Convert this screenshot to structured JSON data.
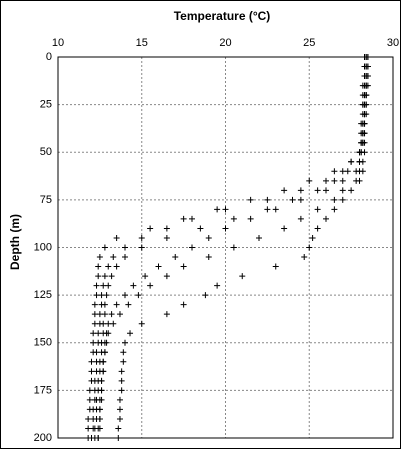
{
  "chart_data": {
    "type": "scatter",
    "x_label": "Temperature (°C)",
    "y_label": "Depth (m)",
    "xlim": [
      10,
      30
    ],
    "xticks": [
      10,
      15,
      20,
      25,
      30
    ],
    "ylim": [
      0,
      200
    ],
    "yticks": [
      0,
      25,
      50,
      75,
      100,
      125,
      150,
      175,
      200
    ],
    "y_inverted": true,
    "x_axis_position": "top",
    "grid": true,
    "marker": "+",
    "y": [
      0,
      5,
      10,
      15,
      20,
      25,
      30,
      35,
      40,
      45,
      50,
      55,
      60,
      65,
      70,
      75,
      80,
      85,
      90,
      95,
      100,
      105,
      110,
      115,
      120,
      125,
      130,
      135,
      140,
      145,
      150,
      155,
      160,
      165,
      170,
      175,
      180,
      185,
      190,
      195,
      200
    ],
    "series": [
      {
        "color": "#000000",
        "x": [
          28.5,
          28.5,
          28.5,
          28.5,
          28.4,
          28.4,
          28.4,
          28.3,
          28.3,
          28.2,
          28.0,
          27.5,
          27.0,
          26.0,
          24.5,
          22.5,
          20.0,
          17.5,
          15.5,
          13.5,
          12.8,
          12.5,
          12.4,
          12.4,
          12.3,
          12.3,
          12.2,
          12.2,
          12.2,
          12.1,
          12.1,
          12.1,
          12.0,
          12.0,
          12.0,
          11.9,
          11.9,
          11.9,
          11.8,
          11.8,
          11.8
        ]
      },
      {
        "color": "#000000",
        "x": [
          28.3,
          28.3,
          28.4,
          28.3,
          28.3,
          28.2,
          28.3,
          28.2,
          28.2,
          28.2,
          28.1,
          28.0,
          27.8,
          27.0,
          26.0,
          24.5,
          22.5,
          20.5,
          18.5,
          16.5,
          15.0,
          14.0,
          13.5,
          13.2,
          13.0,
          12.9,
          12.8,
          12.8,
          12.7,
          12.7,
          12.6,
          12.6,
          12.5,
          12.5,
          12.4,
          12.4,
          12.3,
          12.3,
          12.3,
          12.2,
          12.2
        ]
      },
      {
        "color": "#000000",
        "x": [
          28.4,
          28.4,
          28.5,
          28.4,
          28.4,
          28.4,
          28.3,
          28.3,
          28.3,
          28.3,
          28.3,
          28.2,
          28.2,
          28.0,
          27.5,
          27.0,
          26.5,
          26.0,
          25.5,
          25.2,
          25.0,
          24.7,
          23.0,
          21.0,
          19.5,
          18.8,
          17.5,
          16.5,
          15.0,
          14.3,
          14.0,
          13.9,
          13.9,
          13.8,
          13.8,
          13.8,
          13.7,
          13.7,
          13.7,
          13.6,
          13.6
        ]
      },
      {
        "color": "#000000",
        "x": [
          28.4,
          28.4,
          28.3,
          28.4,
          28.3,
          28.3,
          28.3,
          28.2,
          28.2,
          28.1,
          28.0,
          28.0,
          27.3,
          26.5,
          25.5,
          24.0,
          23.0,
          21.5,
          20.0,
          19.0,
          18.0,
          17.0,
          16.0,
          15.2,
          14.5,
          14.0,
          13.5,
          13.2,
          13.0,
          12.9,
          12.8,
          12.8,
          12.7,
          12.7,
          12.6,
          12.6,
          12.6,
          12.5,
          12.5,
          12.5,
          12.4
        ]
      },
      {
        "color": "#000000",
        "x": [
          28.3,
          28.3,
          28.3,
          28.2,
          28.2,
          28.2,
          28.2,
          28.1,
          28.1,
          28.1,
          28.1,
          28.0,
          28.0,
          27.8,
          27.0,
          26.5,
          25.5,
          24.5,
          23.5,
          22.0,
          20.5,
          19.0,
          17.5,
          16.5,
          15.5,
          14.8,
          14.2,
          13.7,
          13.3,
          13.0,
          12.9,
          12.8,
          12.7,
          12.7,
          12.6,
          12.6,
          12.5,
          12.5,
          12.5,
          12.4,
          12.4
        ]
      },
      {
        "color": "#000000",
        "x": [
          28.5,
          28.5,
          28.4,
          28.4,
          28.4,
          28.3,
          28.3,
          28.3,
          28.2,
          28.2,
          28.0,
          27.5,
          26.5,
          25.0,
          23.5,
          21.5,
          19.5,
          18.0,
          16.5,
          15.0,
          14.0,
          13.3,
          13.0,
          12.8,
          12.7,
          12.6,
          12.6,
          12.5,
          12.5,
          12.4,
          12.4,
          12.3,
          12.3,
          12.3,
          12.2,
          12.2,
          12.2,
          12.1,
          12.1,
          12.1,
          12.0
        ]
      }
    ]
  }
}
